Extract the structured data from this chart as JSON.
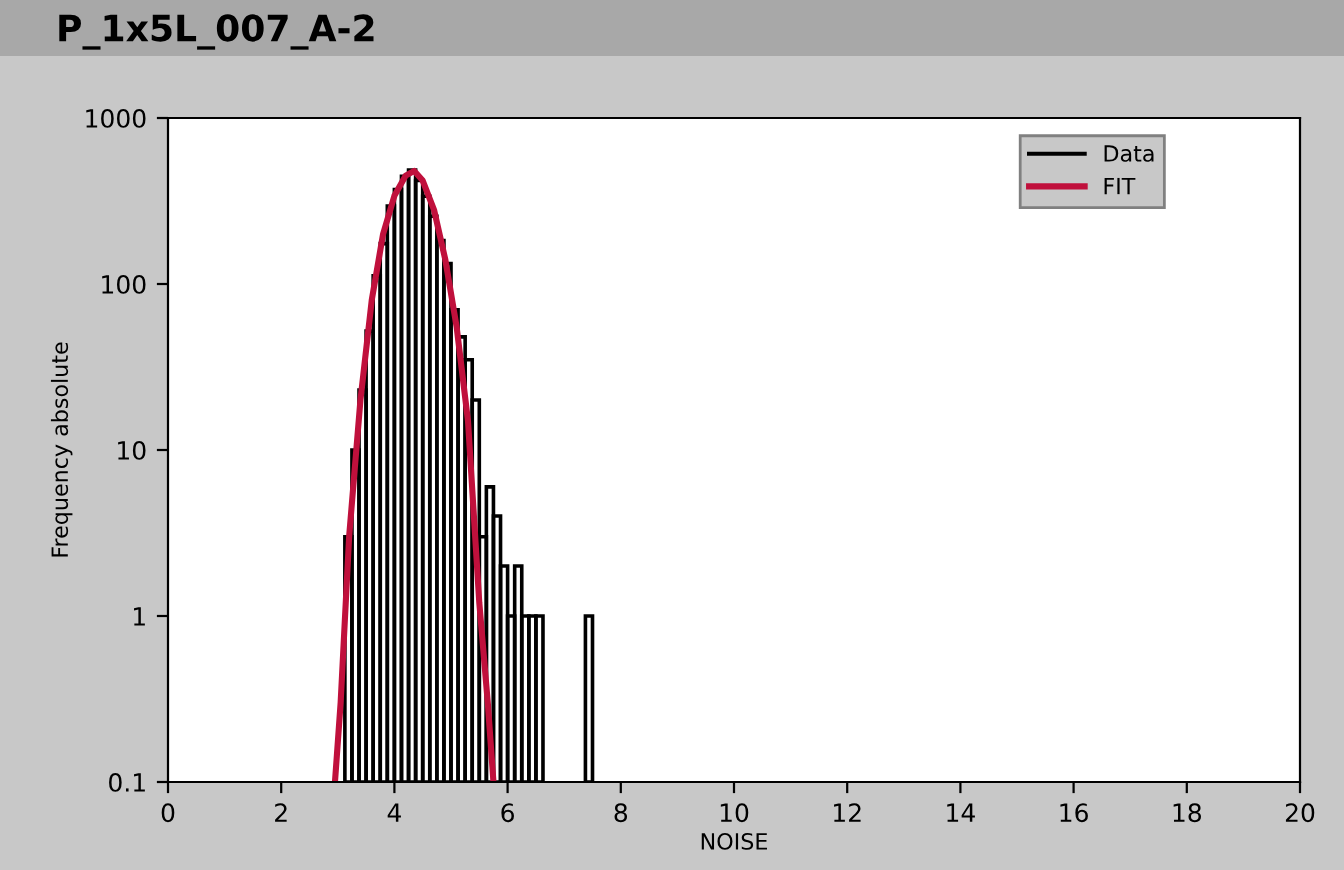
{
  "chart_data": {
    "type": "histogram",
    "title": "P_1x5L_007_A-2",
    "xlabel": "NOISE",
    "ylabel": "Frequency absolute",
    "log": "y",
    "legend": "top right",
    "grid": false,
    "xlim": [
      0,
      20
    ],
    "xticks": [
      0,
      2,
      4,
      6,
      8,
      10,
      12,
      14,
      16,
      18,
      20
    ],
    "ylim": [
      0.1,
      1000
    ],
    "yticks": [
      {
        "value": 0.1,
        "label": "0.1"
      },
      1,
      10,
      100,
      1000
    ],
    "series": [
      {
        "name": "Data",
        "color": "#000000",
        "bins": [
          3.125,
          3.25,
          3.375,
          3.5,
          3.625,
          3.75,
          3.875,
          4.0,
          4.125,
          4.25,
          4.375,
          4.5,
          4.625,
          4.75,
          4.875,
          5.0,
          5.125,
          5.25,
          5.375,
          5.5,
          5.625,
          5.75,
          5.875,
          6.0,
          6.125,
          6.25,
          6.375,
          6.5,
          6.625,
          6.75,
          6.875,
          7.0,
          7.125,
          7.25,
          7.375,
          7.5
        ],
        "values": [
          3,
          10,
          23,
          52,
          112,
          175,
          295,
          370,
          446,
          486,
          420,
          338,
          256,
          183,
          133,
          70,
          48,
          35,
          20,
          3,
          6,
          4,
          2,
          1,
          2,
          1,
          1,
          1,
          null,
          null,
          null,
          null,
          null,
          null,
          1
        ]
      },
      {
        "name": "FIT",
        "type": "line",
        "color": "#c0103c",
        "x": [
          2.95,
          3.05,
          3.2,
          3.4,
          3.6,
          3.8,
          4.0,
          4.2,
          4.35,
          4.5,
          4.7,
          4.9,
          5.1,
          5.3,
          5.5,
          5.65,
          5.75
        ],
        "values": [
          0.1,
          0.3,
          3,
          20,
          80,
          200,
          340,
          450,
          480,
          420,
          280,
          140,
          55,
          15,
          1.2,
          0.3,
          0.1
        ]
      }
    ]
  }
}
